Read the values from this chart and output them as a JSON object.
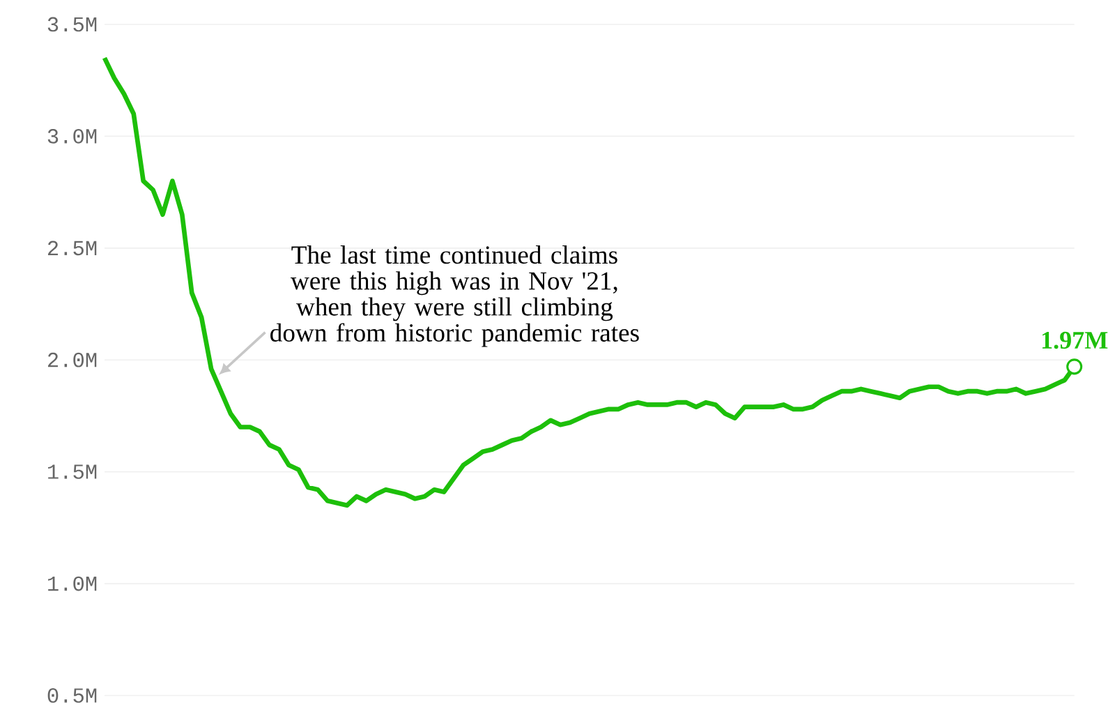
{
  "chart_data": {
    "type": "line",
    "categories": [
      null,
      null,
      null,
      null,
      null,
      null,
      null,
      null,
      null,
      null,
      null,
      null,
      null,
      null,
      null,
      null,
      null,
      null,
      null,
      null,
      null,
      null,
      null,
      null,
      null,
      null,
      null,
      null,
      null,
      null,
      null,
      null,
      null,
      null,
      null,
      null,
      null,
      null,
      null,
      null,
      null,
      null,
      null,
      null,
      null,
      null,
      null,
      null,
      null,
      null,
      null,
      null,
      null,
      null,
      null,
      null,
      null,
      null,
      null,
      null,
      null,
      null,
      null,
      null,
      null,
      null,
      null,
      null,
      null,
      null,
      null,
      null,
      null,
      null,
      null,
      null,
      null,
      null,
      null,
      null,
      null,
      null,
      null,
      null,
      null,
      null,
      null,
      null,
      null,
      null,
      null,
      null,
      null,
      null,
      null,
      null,
      null,
      null,
      null,
      null,
      null
    ],
    "values": [
      3.35,
      3.26,
      3.19,
      3.1,
      2.8,
      2.76,
      2.65,
      2.8,
      2.65,
      2.3,
      2.19,
      1.96,
      1.86,
      1.76,
      1.7,
      1.7,
      1.68,
      1.62,
      1.6,
      1.53,
      1.51,
      1.43,
      1.42,
      1.37,
      1.36,
      1.35,
      1.39,
      1.37,
      1.4,
      1.42,
      1.41,
      1.4,
      1.38,
      1.39,
      1.42,
      1.41,
      1.47,
      1.53,
      1.56,
      1.59,
      1.6,
      1.62,
      1.64,
      1.65,
      1.68,
      1.7,
      1.73,
      1.71,
      1.72,
      1.74,
      1.76,
      1.77,
      1.78,
      1.78,
      1.8,
      1.81,
      1.8,
      1.8,
      1.8,
      1.81,
      1.81,
      1.79,
      1.81,
      1.8,
      1.76,
      1.74,
      1.79,
      1.79,
      1.79,
      1.79,
      1.8,
      1.78,
      1.78,
      1.79,
      1.82,
      1.84,
      1.86,
      1.86,
      1.87,
      1.86,
      1.85,
      1.84,
      1.83,
      1.86,
      1.87,
      1.88,
      1.88,
      1.86,
      1.85,
      1.86,
      1.86,
      1.85,
      1.86,
      1.86,
      1.87,
      1.85,
      1.86,
      1.87,
      1.89,
      1.91,
      1.97
    ],
    "value_labels": [
      null,
      null,
      null,
      null,
      null,
      null,
      null,
      null,
      null,
      null,
      null,
      null,
      null,
      null,
      null,
      null,
      null,
      null,
      null,
      null,
      null,
      null,
      null,
      null,
      null,
      null,
      null,
      null,
      null,
      null,
      null,
      null,
      null,
      null,
      null,
      null,
      null,
      null,
      null,
      null,
      null,
      null,
      null,
      null,
      null,
      null,
      null,
      null,
      null,
      null,
      null,
      null,
      null,
      null,
      null,
      null,
      null,
      null,
      null,
      null,
      null,
      null,
      null,
      null,
      null,
      null,
      null,
      null,
      null,
      null,
      null,
      null,
      null,
      null,
      null,
      null,
      null,
      null,
      null,
      null,
      null,
      null,
      null,
      null,
      null,
      null,
      null,
      null,
      null,
      null,
      null,
      null,
      null,
      null,
      null,
      null,
      null,
      null,
      null,
      null,
      "1.97M"
    ],
    "color": "#1dbf0a",
    "ylim": [
      0.5,
      3.5
    ],
    "yticks": [
      {
        "value": 0.5,
        "label": "0.5M"
      },
      {
        "value": 1.0,
        "label": "1.0M"
      },
      {
        "value": 1.5,
        "label": "1.5M"
      },
      {
        "value": 2.0,
        "label": "2.0M"
      },
      {
        "value": 2.5,
        "label": "2.5M"
      },
      {
        "value": 3.0,
        "label": "3.0M"
      },
      {
        "value": 3.5,
        "label": "3.5M"
      }
    ],
    "grid": "y",
    "tick_labels": "y",
    "annotations": [
      "The last time continued claims were this high was in Nov '21, when they were still climbing down from historic pandemic rates"
    ]
  }
}
